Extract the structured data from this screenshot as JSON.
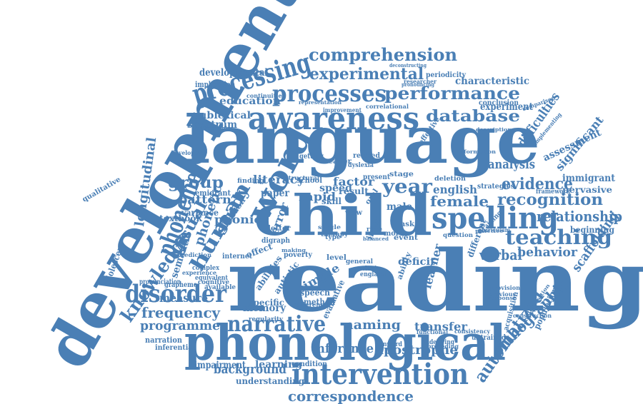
{
  "color": "#4a7fb5",
  "words": [
    {
      "t": "reading"
    },
    {
      "t": "language"
    },
    {
      "t": "development"
    },
    {
      "t": "phonological"
    },
    {
      "t": "child"
    },
    {
      "t": "spelling"
    },
    {
      "t": "awareness"
    },
    {
      "t": "processes"
    },
    {
      "t": "intervention"
    },
    {
      "t": "word"
    },
    {
      "t": "processing"
    },
    {
      "t": "disorder"
    },
    {
      "t": "phoneme"
    },
    {
      "t": "narrative"
    },
    {
      "t": "comprehension"
    },
    {
      "t": "performance"
    },
    {
      "t": "experimental"
    },
    {
      "t": "database"
    },
    {
      "t": "recognition"
    },
    {
      "t": "teaching"
    },
    {
      "t": "knowledge"
    },
    {
      "t": "human"
    },
    {
      "t": "study"
    },
    {
      "t": "visual"
    },
    {
      "t": "year"
    },
    {
      "t": "group"
    },
    {
      "t": "correspondence"
    },
    {
      "t": "automatized"
    },
    {
      "t": "orthographic"
    },
    {
      "t": "frequency"
    },
    {
      "t": "programme"
    },
    {
      "t": "relationship"
    },
    {
      "t": "evidence"
    },
    {
      "t": "behavior"
    },
    {
      "t": "verbal"
    },
    {
      "t": "female"
    },
    {
      "t": "naming"
    },
    {
      "t": "inference"
    },
    {
      "t": "background"
    },
    {
      "t": "apostrophe"
    },
    {
      "t": "longitudinal"
    },
    {
      "t": "scaffolding"
    },
    {
      "t": "analysis"
    },
    {
      "t": "difficulties"
    },
    {
      "t": "developmental"
    },
    {
      "t": "pattern"
    },
    {
      "t": "phonic"
    },
    {
      "t": "phonetic"
    },
    {
      "t": "literacy"
    },
    {
      "t": "rapid"
    },
    {
      "t": "factor"
    },
    {
      "t": "english"
    },
    {
      "t": "education"
    },
    {
      "t": "sublexical"
    },
    {
      "t": "spectrum"
    },
    {
      "t": "measure"
    },
    {
      "t": "memory"
    },
    {
      "t": "simple"
    },
    {
      "t": "learning"
    },
    {
      "t": "understanding"
    },
    {
      "t": "impairment"
    },
    {
      "t": "transfer"
    },
    {
      "t": "learner"
    },
    {
      "t": "deficit"
    },
    {
      "t": "experiment"
    },
    {
      "t": "characteristic"
    },
    {
      "t": "significant"
    },
    {
      "t": "assessment"
    },
    {
      "t": "immigrant"
    },
    {
      "t": "pervasive"
    },
    {
      "t": "beginning"
    },
    {
      "t": "speed"
    },
    {
      "t": "paper"
    },
    {
      "t": "error"
    },
    {
      "t": "male"
    },
    {
      "t": "result"
    },
    {
      "t": "semantic"
    },
    {
      "t": "variance"
    },
    {
      "t": "textbook"
    },
    {
      "t": "emigrant"
    },
    {
      "t": "qualitative"
    },
    {
      "t": "adolescent"
    },
    {
      "t": "narration"
    },
    {
      "t": "inferential"
    },
    {
      "t": "pronunciation"
    },
    {
      "t": "grapheme"
    },
    {
      "t": "implication"
    },
    {
      "t": "periodicity"
    },
    {
      "t": "researcher"
    },
    {
      "t": "conclusion"
    },
    {
      "t": "acquisition"
    },
    {
      "t": "population"
    },
    {
      "t": "untrained"
    },
    {
      "t": "specific"
    },
    {
      "t": "condition"
    },
    {
      "t": "method"
    },
    {
      "t": "evaluative"
    },
    {
      "t": "abilities"
    },
    {
      "t": "autistic"
    },
    {
      "t": "speech"
    },
    {
      "t": "london"
    },
    {
      "t": "internet"
    },
    {
      "t": "effect"
    },
    {
      "t": "poverty"
    },
    {
      "t": "skill"
    },
    {
      "t": "letter"
    },
    {
      "t": "reader"
    },
    {
      "t": "present"
    },
    {
      "t": "stage"
    },
    {
      "t": "event"
    },
    {
      "t": "strategies"
    },
    {
      "t": "deletion"
    },
    {
      "t": "framework"
    },
    {
      "t": "different"
    },
    {
      "t": "training"
    },
    {
      "t": "curriculum"
    },
    {
      "t": "provision"
    },
    {
      "t": "previous"
    },
    {
      "t": "comparison"
    },
    {
      "t": "implementing"
    },
    {
      "t": "description"
    },
    {
      "t": "deconstructing"
    },
    {
      "t": "pronouncing"
    },
    {
      "t": "effective"
    },
    {
      "t": "related"
    },
    {
      "t": "dyslexia"
    },
    {
      "t": "getting"
    },
    {
      "t": "view"
    },
    {
      "t": "oral"
    },
    {
      "t": "inner"
    },
    {
      "t": "level"
    },
    {
      "t": "general"
    },
    {
      "t": "ethnic"
    },
    {
      "t": "england"
    },
    {
      "t": "ability"
    },
    {
      "t": "complex"
    },
    {
      "t": "equivalent"
    },
    {
      "t": "cognitive"
    },
    {
      "t": "available"
    },
    {
      "t": "nonword"
    },
    {
      "t": "underlying"
    },
    {
      "t": "functional"
    },
    {
      "t": "developing"
    },
    {
      "t": "continuities"
    },
    {
      "t": "improvement"
    },
    {
      "t": "correlational"
    },
    {
      "t": "representation"
    },
    {
      "t": "consistency"
    },
    {
      "t": "task"
    },
    {
      "t": "question"
    },
    {
      "t": "therapy"
    },
    {
      "t": "digraph"
    },
    {
      "t": "preceding"
    },
    {
      "t": "construction"
    },
    {
      "t": "regularity"
    },
    {
      "t": "difference"
    },
    {
      "t": "orthography"
    },
    {
      "t": "prediction"
    },
    {
      "t": "experience"
    },
    {
      "t": "finding"
    },
    {
      "t": "structural"
    },
    {
      "t": "school"
    },
    {
      "t": "type"
    },
    {
      "t": "single"
    },
    {
      "t": "rime"
    },
    {
      "t": "more"
    },
    {
      "t": "information"
    },
    {
      "t": "practice"
    },
    {
      "t": "response"
    },
    {
      "t": "disposition"
    },
    {
      "t": "making"
    },
    {
      "t": "balanced"
    }
  ]
}
